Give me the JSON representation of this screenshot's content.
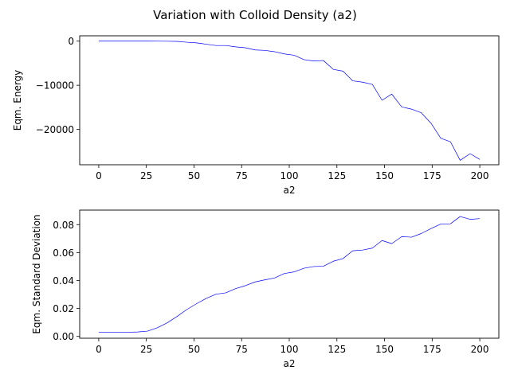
{
  "suptitle": "Variation with Colloid Density (a2)",
  "chart_data": [
    {
      "type": "line",
      "xlabel": "a2",
      "ylabel": "Eqm. Energy",
      "xlim": [
        -10,
        210
      ],
      "ylim": [
        -28000,
        1200
      ],
      "xticks": [
        0,
        25,
        50,
        75,
        100,
        125,
        150,
        175,
        200
      ],
      "yticks": [
        0,
        -10000,
        -20000
      ],
      "ytick_labels": [
        "0",
        "−10000",
        "−20000"
      ],
      "grid": false,
      "line_color": "#0000ff",
      "series": [
        {
          "x": [
            0,
            5.1,
            10.3,
            15.4,
            20.5,
            25.6,
            30.8,
            35.9,
            41,
            46.2,
            51.3,
            56.4,
            61.5,
            66.7,
            71.8,
            76.9,
            82.1,
            87.2,
            92.3,
            97.4,
            102.6,
            107.7,
            112.8,
            117.9,
            123.1,
            128.2,
            133.3,
            138.5,
            143.6,
            148.7,
            153.8,
            159,
            164.1,
            169.2,
            174.4,
            179.5,
            184.6,
            189.7,
            194.9,
            200
          ],
          "values": [
            0,
            0,
            0,
            0,
            0,
            0,
            -10,
            -30,
            -60,
            -250,
            -400,
            -700,
            -1000,
            -1000,
            -1300,
            -1500,
            -2000,
            -2100,
            -2400,
            -2900,
            -3200,
            -4200,
            -4500,
            -4400,
            -6400,
            -6800,
            -9000,
            -9300,
            -9800,
            -13400,
            -12000,
            -14900,
            -15400,
            -16200,
            -18600,
            -22000,
            -22800,
            -27000,
            -25500,
            -26800
          ]
        }
      ]
    },
    {
      "type": "line",
      "xlabel": "a2",
      "ylabel": "Eqm. Standard Deviation",
      "xlim": [
        -10,
        210
      ],
      "ylim": [
        -0.0013,
        0.0904
      ],
      "xticks": [
        0,
        25,
        50,
        75,
        100,
        125,
        150,
        175,
        200
      ],
      "yticks": [
        0.0,
        0.02,
        0.04,
        0.06,
        0.08
      ],
      "ytick_labels": [
        "0.00",
        "0.02",
        "0.04",
        "0.06",
        "0.08"
      ],
      "grid": false,
      "line_color": "#0000ff",
      "series": [
        {
          "x": [
            0,
            5.1,
            10.3,
            15.4,
            20.5,
            25.6,
            30.8,
            35.9,
            41,
            46.2,
            51.3,
            56.4,
            61.5,
            66.7,
            71.8,
            76.9,
            82.1,
            87.2,
            92.3,
            97.4,
            102.6,
            107.7,
            112.8,
            117.9,
            123.1,
            128.2,
            133.3,
            138.5,
            143.6,
            148.7,
            153.8,
            159,
            164.1,
            169.2,
            174.4,
            179.5,
            184.6,
            189.7,
            194.9,
            200
          ],
          "values": [
            0.003,
            0.003,
            0.003,
            0.003,
            0.0032,
            0.0038,
            0.0062,
            0.0097,
            0.0142,
            0.0192,
            0.0234,
            0.0272,
            0.0302,
            0.0312,
            0.0342,
            0.0363,
            0.039,
            0.0405,
            0.0418,
            0.045,
            0.0462,
            0.0488,
            0.05,
            0.0502,
            0.0538,
            0.0557,
            0.0613,
            0.0618,
            0.0632,
            0.0686,
            0.0664,
            0.0714,
            0.071,
            0.0736,
            0.0772,
            0.0804,
            0.0806,
            0.0858,
            0.0838,
            0.0843
          ]
        }
      ]
    }
  ]
}
